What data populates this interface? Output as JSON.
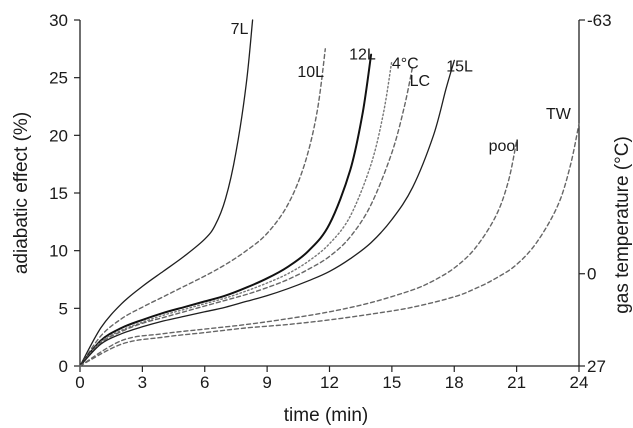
{
  "chart_data": {
    "type": "line",
    "title": "",
    "xlabel": "time (min)",
    "ylabel": "adiabatic effect (%)",
    "y2label": "gas temperature (°C)",
    "xlim": [
      0,
      24
    ],
    "ylim": [
      0,
      30
    ],
    "xticks": [
      "0",
      "3",
      "6",
      "9",
      "12",
      "15",
      "18",
      "21",
      "24"
    ],
    "yticks": [
      "0",
      "5",
      "10",
      "15",
      "20",
      "25",
      "30"
    ],
    "y2ticks": [
      {
        "label": "-63",
        "at_y": 30
      },
      {
        "label": "0",
        "at_y": 8
      },
      {
        "label": "27",
        "at_y": 0
      }
    ],
    "grid": false,
    "legend": "none",
    "series": [
      {
        "name": "7L",
        "style": "solid",
        "label": "7L",
        "points": [
          [
            0,
            0
          ],
          [
            1,
            3.3
          ],
          [
            2,
            5.4
          ],
          [
            3,
            6.9
          ],
          [
            4,
            8.2
          ],
          [
            5,
            9.5
          ],
          [
            6,
            11
          ],
          [
            6.5,
            12.2
          ],
          [
            7,
            14.5
          ],
          [
            7.5,
            18.5
          ],
          [
            8,
            24.5
          ],
          [
            8.3,
            30
          ]
        ]
      },
      {
        "name": "10L",
        "style": "dashed",
        "label": "10L",
        "points": [
          [
            0,
            0
          ],
          [
            1,
            2.6
          ],
          [
            2,
            4.1
          ],
          [
            3,
            5.1
          ],
          [
            4,
            6
          ],
          [
            5,
            6.9
          ],
          [
            6,
            7.8
          ],
          [
            7,
            8.8
          ],
          [
            8,
            10
          ],
          [
            9,
            11.5
          ],
          [
            10,
            14
          ],
          [
            10.8,
            17.5
          ],
          [
            11.4,
            22
          ],
          [
            11.8,
            27.5
          ]
        ]
      },
      {
        "name": "12L",
        "style": "solid-bold",
        "label": "12L",
        "points": [
          [
            0,
            0
          ],
          [
            1,
            2.2
          ],
          [
            2,
            3.3
          ],
          [
            3,
            4
          ],
          [
            4,
            4.6
          ],
          [
            5,
            5.1
          ],
          [
            6,
            5.6
          ],
          [
            7,
            6.1
          ],
          [
            8,
            6.8
          ],
          [
            9,
            7.6
          ],
          [
            10,
            8.6
          ],
          [
            11,
            10
          ],
          [
            12,
            12.3
          ],
          [
            13,
            17
          ],
          [
            13.6,
            22
          ],
          [
            14,
            27
          ]
        ]
      },
      {
        "name": "4°C",
        "style": "dotted",
        "label": "4°C",
        "points": [
          [
            0,
            0
          ],
          [
            1,
            2.1
          ],
          [
            2,
            3.1
          ],
          [
            3,
            3.8
          ],
          [
            4,
            4.4
          ],
          [
            5,
            4.9
          ],
          [
            6,
            5.4
          ],
          [
            7,
            5.9
          ],
          [
            8,
            6.5
          ],
          [
            9,
            7.2
          ],
          [
            10,
            8
          ],
          [
            11,
            9.1
          ],
          [
            12,
            10.6
          ],
          [
            13,
            13
          ],
          [
            14,
            17.5
          ],
          [
            14.6,
            22
          ],
          [
            15,
            26.5
          ]
        ]
      },
      {
        "name": "LC",
        "style": "dashed",
        "label": "LC",
        "points": [
          [
            0,
            0
          ],
          [
            1,
            2
          ],
          [
            2,
            3
          ],
          [
            3,
            3.7
          ],
          [
            4,
            4.2
          ],
          [
            5,
            4.7
          ],
          [
            6,
            5.2
          ],
          [
            7,
            5.7
          ],
          [
            8,
            6.2
          ],
          [
            9,
            6.8
          ],
          [
            10,
            7.5
          ],
          [
            11,
            8.4
          ],
          [
            12,
            9.5
          ],
          [
            13,
            11.2
          ],
          [
            14,
            14
          ],
          [
            15,
            18.5
          ],
          [
            15.6,
            22.5
          ],
          [
            16,
            26
          ]
        ]
      },
      {
        "name": "15L",
        "style": "solid",
        "label": "15L",
        "points": [
          [
            0,
            0
          ],
          [
            1,
            1.9
          ],
          [
            2,
            2.8
          ],
          [
            3,
            3.4
          ],
          [
            4,
            3.9
          ],
          [
            5,
            4.3
          ],
          [
            6,
            4.7
          ],
          [
            7,
            5.1
          ],
          [
            8,
            5.6
          ],
          [
            9,
            6.1
          ],
          [
            10,
            6.7
          ],
          [
            11,
            7.4
          ],
          [
            12,
            8.2
          ],
          [
            13,
            9.3
          ],
          [
            14,
            10.7
          ],
          [
            15,
            12.7
          ],
          [
            16,
            15.5
          ],
          [
            17,
            20
          ],
          [
            17.6,
            24
          ],
          [
            18,
            26.5
          ]
        ]
      },
      {
        "name": "pool",
        "style": "dashed",
        "label": "pool",
        "points": [
          [
            0,
            0
          ],
          [
            2,
            2.2
          ],
          [
            4,
            2.8
          ],
          [
            6,
            3.2
          ],
          [
            8,
            3.6
          ],
          [
            10,
            4.1
          ],
          [
            12,
            4.7
          ],
          [
            14,
            5.5
          ],
          [
            16,
            6.6
          ],
          [
            17,
            7.4
          ],
          [
            18,
            8.5
          ],
          [
            19,
            10.2
          ],
          [
            20,
            13
          ],
          [
            20.6,
            16
          ],
          [
            21,
            19.5
          ]
        ]
      },
      {
        "name": "TW",
        "style": "dashed",
        "label": "TW",
        "points": [
          [
            0,
            0
          ],
          [
            2,
            1.9
          ],
          [
            4,
            2.5
          ],
          [
            6,
            2.9
          ],
          [
            8,
            3.3
          ],
          [
            10,
            3.6
          ],
          [
            12,
            4
          ],
          [
            14,
            4.5
          ],
          [
            16,
            5.1
          ],
          [
            18,
            6
          ],
          [
            19,
            6.7
          ],
          [
            20,
            7.6
          ],
          [
            21,
            8.8
          ],
          [
            22,
            10.8
          ],
          [
            23,
            14
          ],
          [
            23.6,
            17.5
          ],
          [
            24,
            21
          ]
        ]
      }
    ]
  }
}
